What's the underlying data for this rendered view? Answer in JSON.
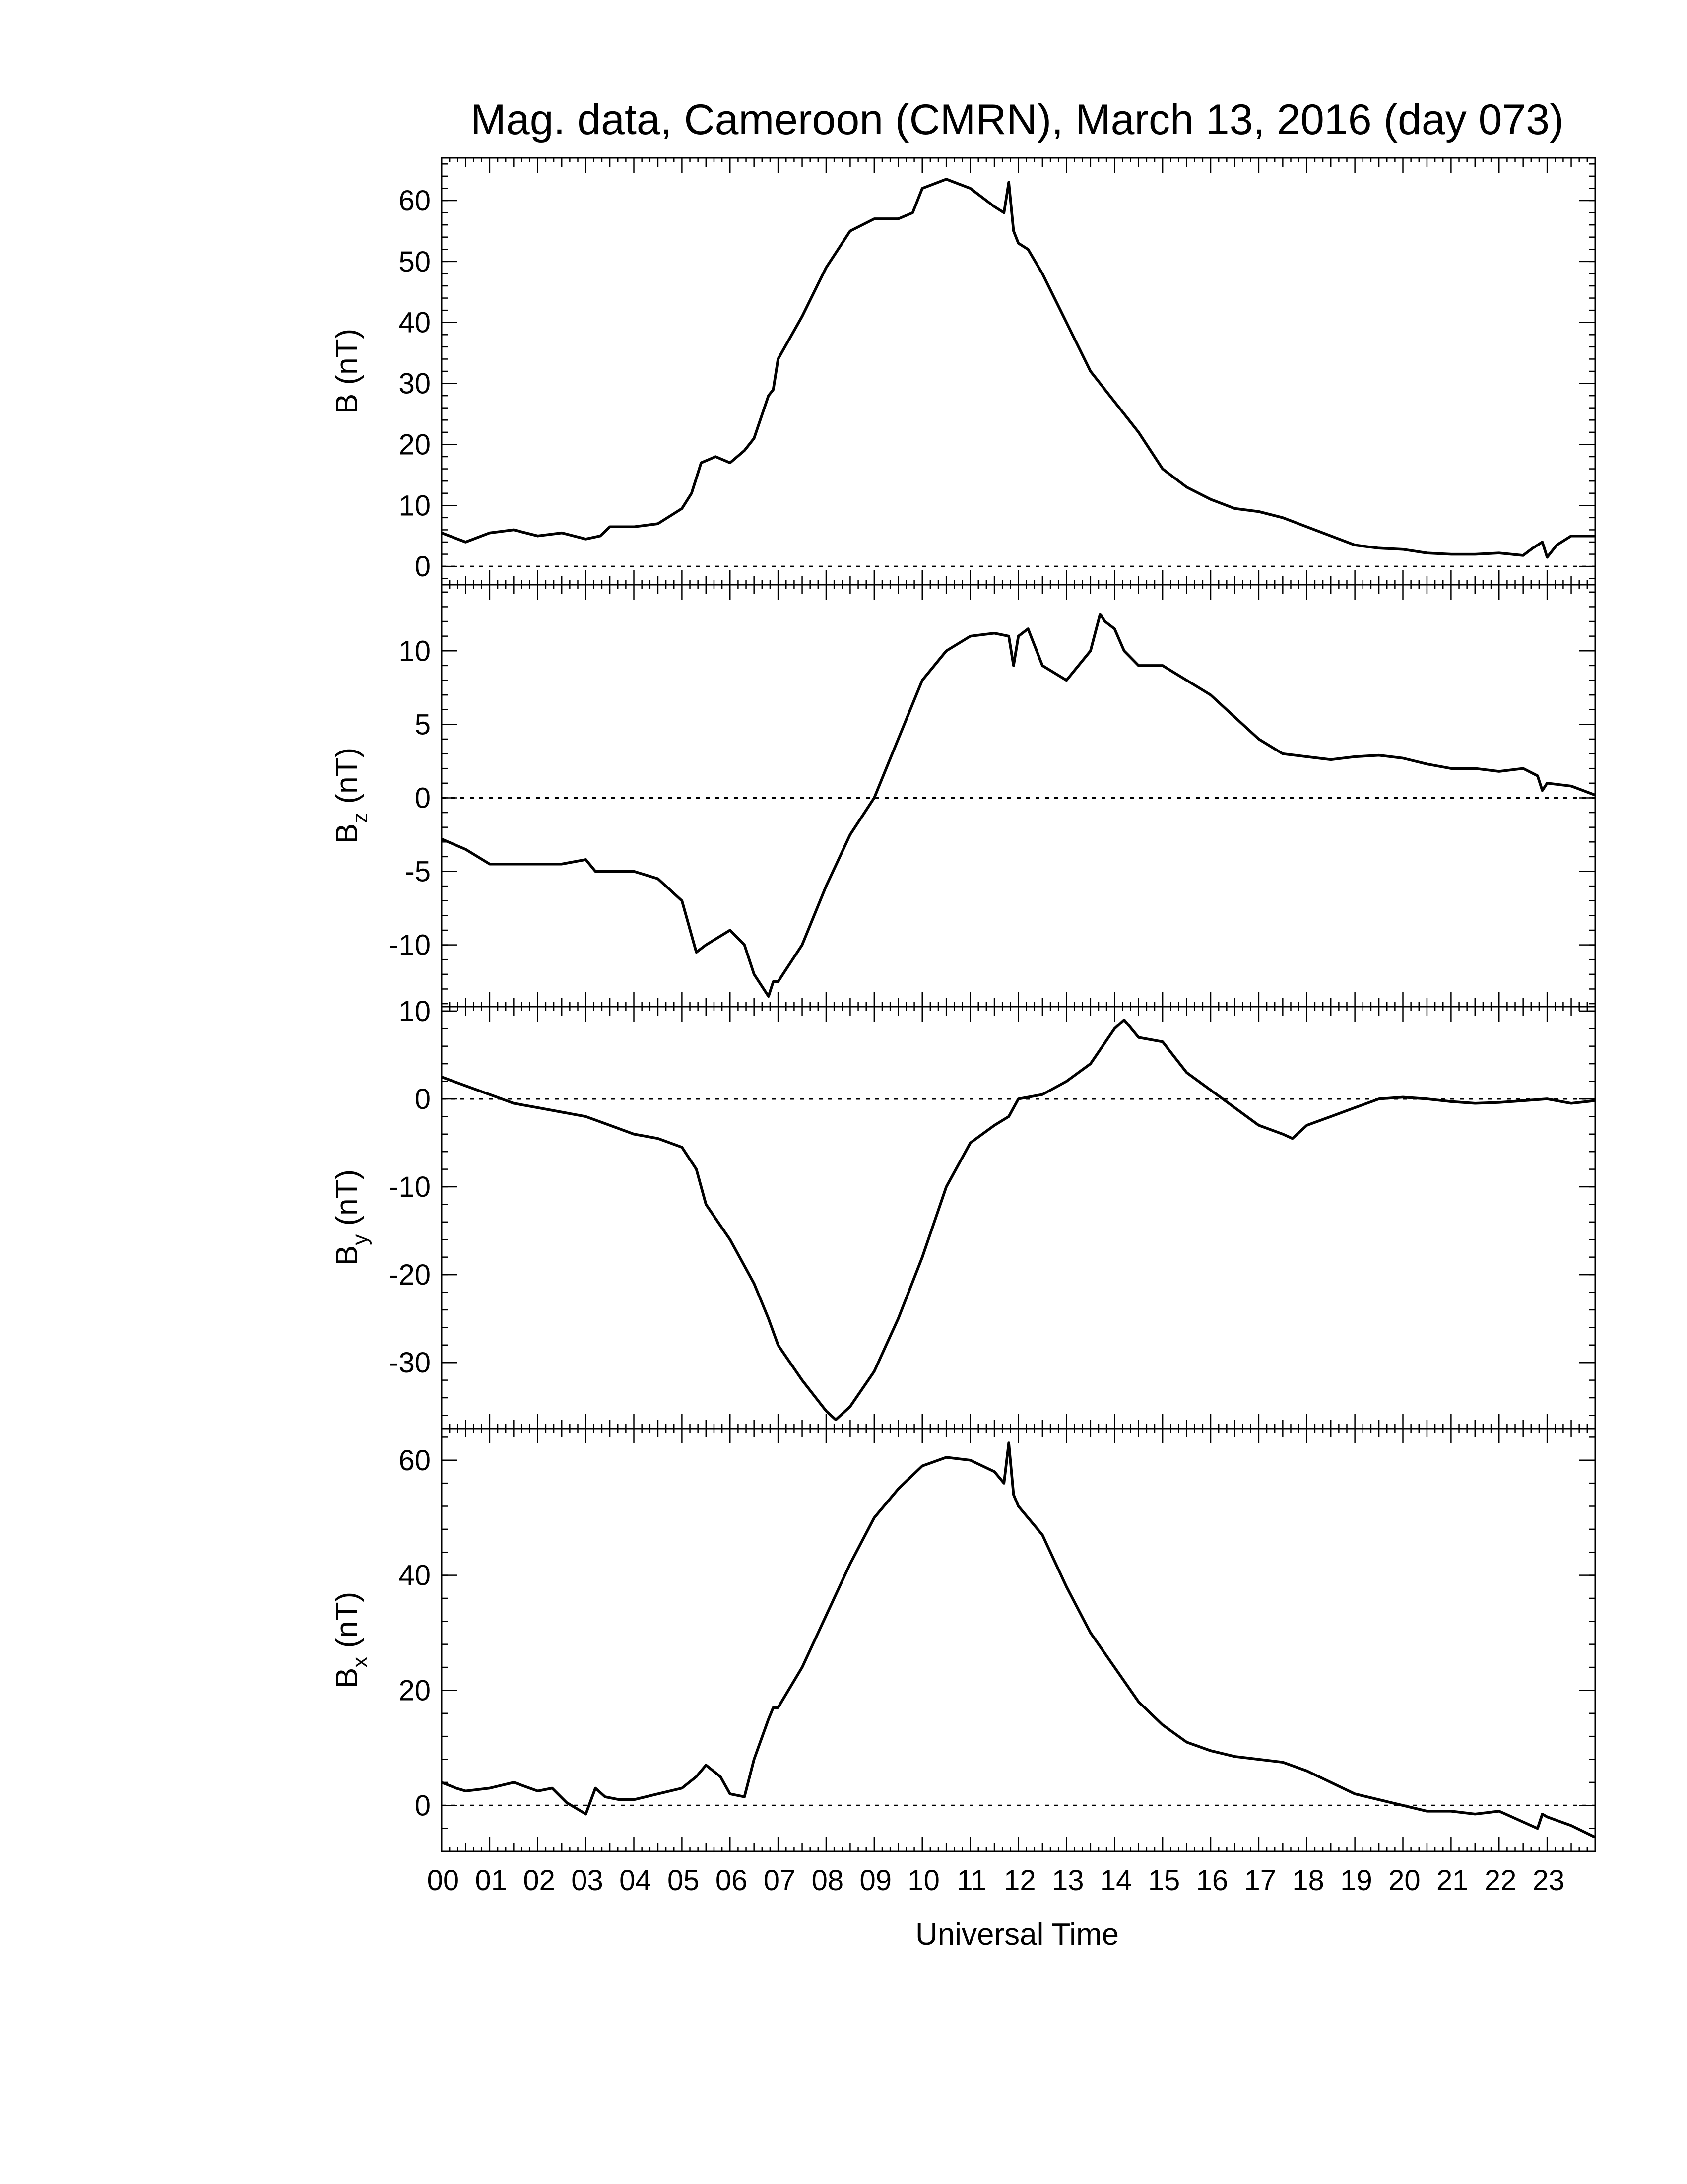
{
  "chart_data": {
    "type": "line",
    "title": "Mag. data, Cameroon (CMRN), March 13, 2016 (day 073)",
    "xlabel": "Universal Time",
    "xlim": [
      0,
      24
    ],
    "x_tick_labels": [
      "00",
      "01",
      "02",
      "03",
      "04",
      "05",
      "06",
      "07",
      "08",
      "09",
      "10",
      "11",
      "12",
      "13",
      "14",
      "15",
      "16",
      "17",
      "18",
      "19",
      "20",
      "21",
      "22",
      "23"
    ],
    "panels": [
      {
        "id": "B",
        "ylabel_main": "B",
        "ylabel_sub": "",
        "ylabel_unit": "(nT)",
        "ylim": [
          -3,
          67
        ],
        "yticks": [
          0,
          10,
          20,
          30,
          40,
          50,
          60
        ],
        "zero_line": true,
        "x": [
          0,
          0.5,
          1,
          1.5,
          2,
          2.5,
          3,
          3.3,
          3.5,
          4,
          4.5,
          5,
          5.2,
          5.4,
          5.7,
          6,
          6.3,
          6.5,
          6.8,
          6.9,
          7,
          7.5,
          8,
          8.5,
          9,
          9.5,
          9.8,
          10,
          10.5,
          11,
          11.5,
          11.7,
          11.8,
          11.9,
          12,
          12.2,
          12.5,
          13,
          13.5,
          14,
          14.5,
          15,
          15.5,
          16,
          16.5,
          17,
          17.5,
          18,
          18.5,
          19,
          19.5,
          20,
          20.5,
          21,
          21.5,
          22,
          22.5,
          22.7,
          22.9,
          23,
          23.2,
          23.5,
          23.99
        ],
        "values": [
          5.5,
          4,
          5.5,
          6,
          5,
          5.5,
          4.5,
          5,
          6.5,
          6.5,
          7,
          9.5,
          12,
          17,
          18,
          17,
          19,
          21,
          28,
          29,
          34,
          41,
          49,
          55,
          57,
          57,
          58,
          62,
          63.5,
          62,
          59,
          58,
          63,
          55,
          53,
          52,
          48,
          40,
          32,
          27,
          22,
          16,
          13,
          11,
          9.5,
          9,
          8,
          6.5,
          5,
          3.5,
          3,
          2.8,
          2.2,
          2,
          2,
          2.2,
          1.8,
          3,
          4,
          1.5,
          3.5,
          5,
          5
        ]
      },
      {
        "id": "Bz",
        "ylabel_main": "B",
        "ylabel_sub": "z",
        "ylabel_unit": "(nT)",
        "ylim": [
          -14.2,
          14.5
        ],
        "yticks": [
          -10,
          -5,
          0,
          5,
          10
        ],
        "zero_line": true,
        "x": [
          0,
          0.5,
          1,
          1.5,
          2,
          2.5,
          3,
          3.2,
          3.5,
          4,
          4.5,
          5,
          5.3,
          5.5,
          6,
          6.3,
          6.5,
          6.8,
          6.9,
          7,
          7.5,
          8,
          8.5,
          9,
          9.5,
          10,
          10.5,
          11,
          11.5,
          11.8,
          11.9,
          12,
          12.2,
          12.5,
          13,
          13.5,
          13.7,
          13.8,
          14,
          14.2,
          14.5,
          15,
          15.5,
          16,
          16.5,
          17,
          17.5,
          18,
          18.5,
          19,
          19.5,
          20,
          20.5,
          21,
          21.5,
          22,
          22.5,
          22.8,
          22.9,
          23,
          23.5,
          23.99
        ],
        "values": [
          -2.8,
          -3.5,
          -4.5,
          -4.5,
          -4.5,
          -4.5,
          -4.2,
          -5,
          -5,
          -5,
          -5.5,
          -7,
          -10.5,
          -10,
          -9,
          -10,
          -12,
          -13.5,
          -12.5,
          -12.5,
          -10,
          -6,
          -2.5,
          0,
          4,
          8,
          10,
          11,
          11.2,
          11,
          9,
          11,
          11.5,
          9,
          8,
          10,
          12.5,
          12,
          11.5,
          10,
          9,
          9,
          8,
          7,
          5.5,
          4,
          3,
          2.8,
          2.6,
          2.8,
          2.9,
          2.7,
          2.3,
          2,
          2,
          1.8,
          2,
          1.5,
          0.5,
          1,
          0.8,
          0.2
        ]
      },
      {
        "id": "By",
        "ylabel_main": "B",
        "ylabel_sub": "y",
        "ylabel_unit": "(nT)",
        "ylim": [
          -37.5,
          10.5
        ],
        "yticks": [
          -30,
          -20,
          -10,
          0,
          10
        ],
        "zero_line": true,
        "x": [
          0,
          0.5,
          1,
          1.5,
          2,
          2.5,
          3,
          3.5,
          4,
          4.5,
          5,
          5.3,
          5.5,
          6,
          6.5,
          6.8,
          7,
          7.5,
          8,
          8.2,
          8.5,
          9,
          9.5,
          10,
          10.5,
          11,
          11.5,
          11.8,
          12,
          12.5,
          13,
          13.5,
          14,
          14.2,
          14.5,
          15,
          15.5,
          16,
          16.5,
          17,
          17.5,
          17.7,
          18,
          18.5,
          19,
          19.5,
          20,
          20.5,
          21,
          21.5,
          22,
          22.5,
          23,
          23.5,
          23.99
        ],
        "values": [
          2.5,
          1.5,
          0.5,
          -0.5,
          -1,
          -1.5,
          -2,
          -3,
          -4,
          -4.5,
          -5.5,
          -8,
          -12,
          -16,
          -21,
          -25,
          -28,
          -32,
          -35.5,
          -36.5,
          -35,
          -31,
          -25,
          -18,
          -10,
          -5,
          -3,
          -2,
          0,
          0.5,
          2,
          4,
          8,
          9,
          7,
          6.5,
          3,
          1,
          -1,
          -3,
          -4,
          -4.5,
          -3,
          -2,
          -1,
          0,
          0.2,
          0,
          -0.3,
          -0.5,
          -0.4,
          -0.2,
          0,
          -0.5,
          -0.2
        ]
      },
      {
        "id": "Bx",
        "ylabel_main": "B",
        "ylabel_sub": "x",
        "ylabel_unit": "(nT)",
        "ylim": [
          -8,
          65.5
        ],
        "yticks": [
          0,
          20,
          40,
          60
        ],
        "zero_line": true,
        "x": [
          0,
          0.3,
          0.5,
          1,
          1.5,
          2,
          2.3,
          2.6,
          3,
          3.2,
          3.4,
          3.7,
          4,
          4.5,
          5,
          5.3,
          5.5,
          5.8,
          6,
          6.3,
          6.5,
          6.8,
          6.9,
          7,
          7.5,
          8,
          8.5,
          9,
          9.5,
          10,
          10.5,
          11,
          11.5,
          11.7,
          11.8,
          11.9,
          12,
          12.5,
          13,
          13.5,
          14,
          14.5,
          15,
          15.5,
          16,
          16.5,
          17,
          17.5,
          18,
          18.5,
          19,
          19.5,
          20,
          20.5,
          21,
          21.5,
          22,
          22.4,
          22.8,
          22.9,
          23,
          23.5,
          23.99
        ],
        "values": [
          4,
          3,
          2.5,
          3,
          4,
          2.5,
          3,
          0.5,
          -1.5,
          3,
          1.5,
          1,
          1,
          2,
          3,
          5,
          7,
          5,
          2,
          1.5,
          8,
          15,
          17,
          17,
          24,
          33,
          42,
          50,
          55,
          59,
          60.5,
          60,
          58,
          56,
          63,
          54,
          52,
          47,
          38,
          30,
          24,
          18,
          14,
          11,
          9.5,
          8.5,
          8,
          7.5,
          6,
          4,
          2,
          1,
          0,
          -1,
          -1,
          -1.5,
          -1,
          -2.5,
          -4,
          -1.5,
          -2,
          -3.5,
          -5.5
        ]
      }
    ]
  }
}
